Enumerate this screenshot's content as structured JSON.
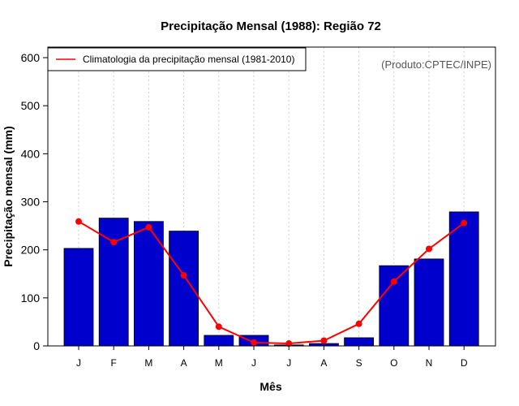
{
  "chart_data": {
    "type": "bar",
    "title": "Precipitação Mensal (1988): Região 72",
    "xlabel": "Mês",
    "ylabel": "Precipitação mensal (mm)",
    "ylim": [
      0,
      600
    ],
    "yticks": [
      0,
      100,
      200,
      300,
      400,
      500,
      600
    ],
    "grid": "vertical-dotted",
    "credit": "(Produto:CPTEC/INPE)",
    "categories": [
      "J",
      "F",
      "M",
      "A",
      "M",
      "J",
      "J",
      "A",
      "S",
      "O",
      "N",
      "D"
    ],
    "series": [
      {
        "name": "Precipitação mensal (1988)",
        "kind": "bar",
        "color": "#0000cc",
        "values": [
          203,
          266,
          259,
          239,
          22,
          22,
          2,
          5,
          17,
          167,
          181,
          279
        ]
      },
      {
        "name": "Climatologia da precipitação mensal (1981-2010)",
        "kind": "line",
        "color": "#ff0000",
        "values": [
          259,
          216,
          247,
          147,
          40,
          7,
          5,
          11,
          46,
          134,
          202,
          256
        ]
      }
    ],
    "legend": {
      "position": "top-left",
      "entries": [
        "Climatologia da precipitação mensal (1981-2010)"
      ]
    }
  }
}
